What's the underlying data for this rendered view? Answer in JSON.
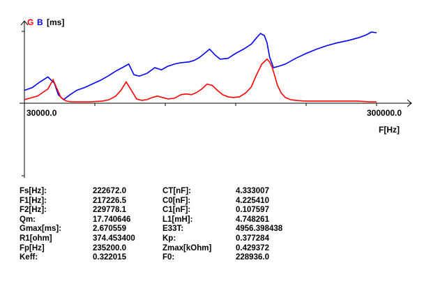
{
  "legend": {
    "g_label": "G",
    "b_label": "B",
    "unit_label": "[ms]",
    "g_color": "#ff0000",
    "b_color": "#0000ff"
  },
  "chart_data": {
    "type": "line",
    "xlim": [
      30000.0,
      300000.0
    ],
    "x_min_label": "30000.0",
    "x_max_label": "300000.0",
    "xlabel": "F[Hz]",
    "ylabel": "",
    "ylim": [
      0,
      1
    ],
    "grid": false,
    "legend_position": "top-left",
    "series": [
      {
        "name": "G",
        "color": "#ff0000",
        "x": [
          30000,
          40000,
          48000,
          52000,
          55000,
          58000,
          62000,
          66000,
          70000,
          80000,
          90000,
          95000,
          100000,
          104000,
          108000,
          112000,
          116000,
          120000,
          124000,
          128000,
          132000,
          136000,
          140000,
          145000,
          150000,
          154000,
          158000,
          162000,
          166000,
          170000,
          174000,
          178000,
          182000,
          186000,
          190000,
          195000,
          200000,
          204000,
          208000,
          212000,
          216000,
          218000,
          220000,
          222000,
          224000,
          227000,
          230000,
          234000,
          238000,
          245000,
          255000,
          265000,
          275000,
          285000,
          295000,
          300000
        ],
        "values": [
          0.05,
          0.1,
          0.2,
          0.33,
          0.2,
          0.08,
          0.03,
          0.02,
          0.02,
          0.02,
          0.03,
          0.05,
          0.1,
          0.18,
          0.3,
          0.18,
          0.06,
          0.04,
          0.05,
          0.08,
          0.1,
          0.08,
          0.06,
          0.07,
          0.12,
          0.13,
          0.12,
          0.15,
          0.2,
          0.27,
          0.25,
          0.18,
          0.12,
          0.09,
          0.08,
          0.09,
          0.15,
          0.23,
          0.4,
          0.55,
          0.62,
          0.58,
          0.5,
          0.38,
          0.25,
          0.14,
          0.08,
          0.05,
          0.04,
          0.03,
          0.03,
          0.03,
          0.03,
          0.03,
          0.02,
          0.02
        ]
      },
      {
        "name": "B",
        "color": "#0000ff",
        "x": [
          30000,
          36000,
          42000,
          48000,
          53000,
          56000,
          60000,
          65000,
          70000,
          76000,
          82000,
          88000,
          94000,
          100000,
          105000,
          110000,
          114000,
          118000,
          124000,
          130000,
          135000,
          140000,
          145000,
          150000,
          156000,
          160000,
          164000,
          168000,
          172000,
          176000,
          180000,
          186000,
          192000,
          198000,
          204000,
          208000,
          211000,
          214000,
          216000,
          218000,
          221000,
          225000,
          230000,
          238000,
          246000,
          254000,
          262000,
          270000,
          278000,
          286000,
          292000,
          296000,
          300000
        ],
        "values": [
          0.18,
          0.22,
          0.3,
          0.37,
          0.28,
          0.12,
          0.05,
          0.12,
          0.18,
          0.22,
          0.27,
          0.32,
          0.38,
          0.45,
          0.5,
          0.55,
          0.4,
          0.38,
          0.42,
          0.5,
          0.47,
          0.52,
          0.55,
          0.57,
          0.58,
          0.6,
          0.64,
          0.7,
          0.76,
          0.68,
          0.62,
          0.63,
          0.7,
          0.76,
          0.83,
          0.92,
          0.98,
          0.95,
          0.85,
          0.65,
          0.5,
          0.52,
          0.55,
          0.63,
          0.7,
          0.76,
          0.81,
          0.85,
          0.88,
          0.92,
          0.96,
          1.0,
          0.99
        ]
      }
    ]
  },
  "params": [
    {
      "k1": "Fs[Hz]:",
      "v1": "222672.0",
      "k2": "CT[nF]:",
      "v2": "4.333007"
    },
    {
      "k1": "F1[Hz]:",
      "v1": "217226.5",
      "k2": "C0[nF]:",
      "v2": "4.225410"
    },
    {
      "k1": "F2[Hz]:",
      "v1": "229778.1",
      "k2": "C1[nF]:",
      "v2": "0.107597"
    },
    {
      "k1": "Qm:",
      "v1": "17.740646",
      "k2": "L1[mH]:",
      "v2": "4.748261"
    },
    {
      "k1": "Gmax[ms]:",
      "v1": "2.670559",
      "k2": "E33T:",
      "v2": "4956.398438"
    },
    {
      "k1": "R1[ohm]",
      "v1": "374.453400",
      "k2": "Kp:",
      "v2": "0.377284"
    },
    {
      "k1": "Fp[Hz]",
      "v1": "235200.0",
      "k2": "Zmax[kOhm]",
      "v2": "0.429372"
    },
    {
      "k1": "Keff:",
      "v1": "0.322015",
      "k2": "F0:",
      "v2": "228936.0"
    }
  ]
}
